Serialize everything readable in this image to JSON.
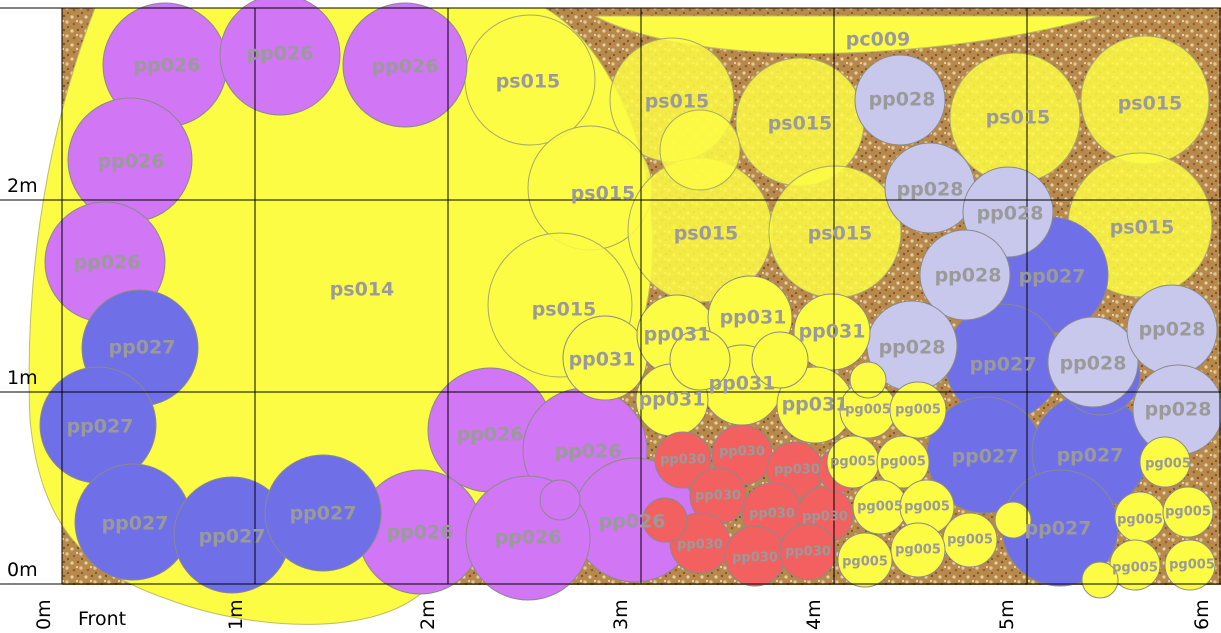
{
  "axis": {
    "x_labels": [
      "0m",
      "1m",
      "2m",
      "3m",
      "4m",
      "5m",
      "6m"
    ],
    "y_labels": [
      "0m",
      "1m",
      "2m"
    ],
    "front_label": "Front"
  },
  "colors": {
    "background": "#b8894a",
    "ps014": "#fdfc45",
    "ps015": "#fdfc45",
    "pc009": "#fdfc45",
    "pp026": "#d176f4",
    "pp027": "#6f6fe8",
    "pp028": "#c8c8ec",
    "pp030": "#f26060",
    "pp031": "#fdfc45",
    "pg005": "#fdfc45",
    "label": "#9a9a9a"
  },
  "plants": {
    "ps014": {
      "code": "ps014"
    },
    "pc009": {
      "code": "pc009"
    },
    "ps015": [
      "ps015",
      "ps015",
      "ps015",
      "ps015",
      "ps015",
      "ps015",
      "ps015",
      "ps015",
      "ps015",
      "ps015",
      "ps015"
    ],
    "pp026": [
      "pp026",
      "pp026",
      "pp026",
      "pp026",
      "pp026",
      "pp026",
      "pp026",
      "pp026",
      "pp026",
      "pp026",
      "pp026"
    ],
    "pp027": [
      "pp027",
      "pp027",
      "pp027",
      "pp027",
      "pp027",
      "pp027",
      "pp027",
      "pp027",
      "pp027",
      "pp027",
      "pp027"
    ],
    "pp028": [
      "pp028",
      "pp028",
      "pp028",
      "pp028",
      "pp028",
      "pp028",
      "pp028",
      "pp028"
    ],
    "pp031": [
      "pp031",
      "pp031",
      "pp031",
      "pp031",
      "pp031",
      "pp031",
      "pp031",
      "pp031",
      "pp031"
    ],
    "pp030": [
      "pp030",
      "pp030",
      "pp030",
      "pp030",
      "pp030",
      "pp030",
      "pp030",
      "pp030",
      "pp030",
      "pp030",
      "pp030"
    ],
    "pg005": [
      "pg005",
      "pg005",
      "pg005",
      "pg005",
      "pg005",
      "pg005",
      "pg005",
      "pg005",
      "pg005",
      "pg005",
      "pg005",
      "pg005",
      "pg005",
      "pg005",
      "pg005",
      "pg005",
      "pg005"
    ]
  }
}
